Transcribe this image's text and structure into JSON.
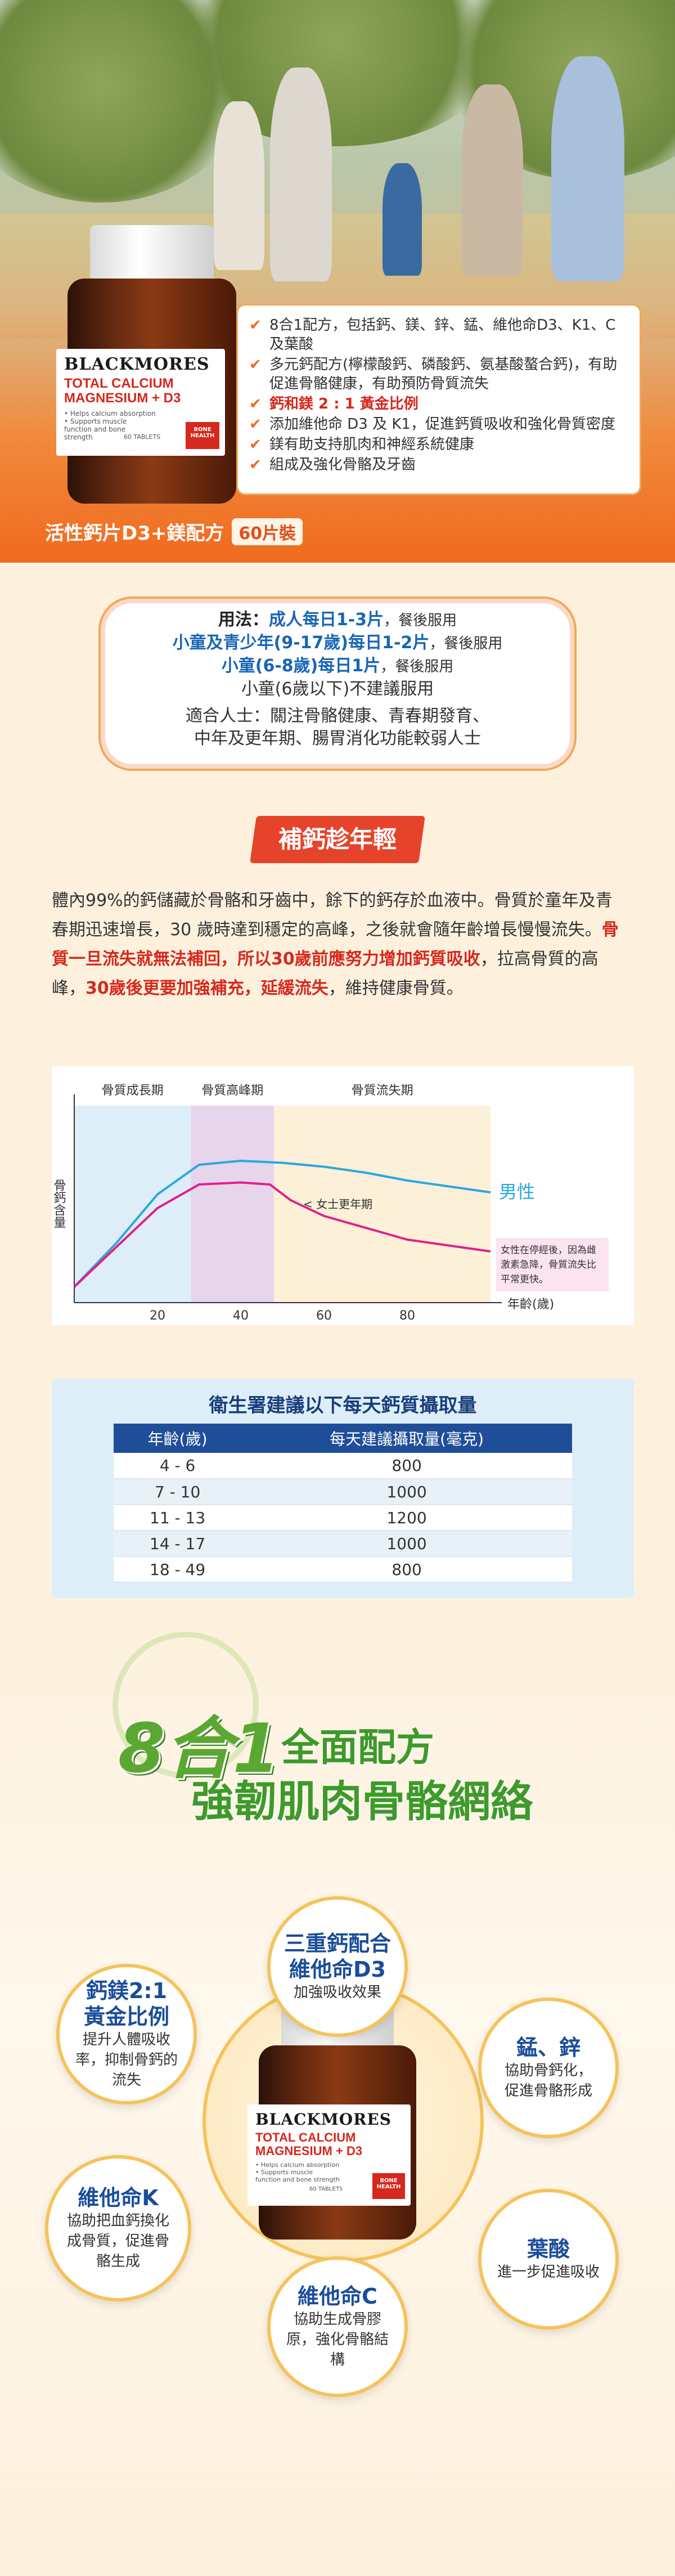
{
  "hero": {
    "brand": "BLACKMORES",
    "product_line1": "TOTAL CALCIUM",
    "product_line2": "MAGNESIUM + D3",
    "label_bullet1": "• Helps calcium absorption",
    "label_bullet2": "• Supports muscle function and bone strength",
    "label_tablets": "60 TABLETS",
    "label_badge": "BONE HEALTH",
    "bullets": [
      "8合1配方，包括鈣、鎂、鋅、錳、維他命D3、K1、C及葉酸",
      "多元鈣配方(檸檬酸鈣、磷酸鈣、氨基酸螯合鈣)，有助促進骨骼健康，有助預防骨質流失",
      "鈣和鎂 2 : 1 黃金比例",
      "添加維他命 D3 及 K1，促進鈣質吸收和強化骨質密度",
      "鎂有助支持肌肉和神經系統健康",
      "組成及強化骨骼及牙齒"
    ],
    "product_name": "活性鈣片D3+鎂配方",
    "pack_size": "60片裝"
  },
  "usage": {
    "line1_label": "用法：",
    "line1_value": "成人每日1-3片",
    "line1_suffix": "，餐後服用",
    "line2_value": "小童及青少年(9-17歲)每日1-2片",
    "line2_suffix": "，餐後服用",
    "line3_value": "小童(6-8歲)每日1片",
    "line3_suffix": "，餐後服用",
    "line4": "小童(6歲以下)不建議服用",
    "line5": "適合人士：關注骨骼健康、青春期發育、",
    "line6": "中年及更年期、腸胃消化功能較弱人士"
  },
  "section": {
    "title": "補鈣趁年輕",
    "para_a": "體內99%的鈣儲藏於骨骼和牙齒中，餘下的鈣存於血液中。骨質於童年及青春期迅速增長，30 歲時達到穩定的高峰，之後就會隨年齡增長慢慢流失。",
    "para_b": "骨質一旦流失就無法補回，所以30歲前應努力增加鈣質吸收",
    "para_c": "，拉高骨質的高峰，",
    "para_d": "30歲後更要加強補充，延緩流失",
    "para_e": "，維持健康骨質。"
  },
  "chart_data": {
    "type": "line",
    "phases": [
      "骨質成長期",
      "骨質高峰期",
      "骨質流失期"
    ],
    "ylabel": "骨鈣含量",
    "xlabel": "年齡(歲)",
    "x_ticks": [
      20,
      40,
      60,
      80
    ],
    "annotation_menopause": "< 女士更年期",
    "female_note": "女性在停經後，因為雌激素急降，骨質流失比平常更快。",
    "series": [
      {
        "name": "男性",
        "color": "#2aa8e0",
        "x": [
          0,
          10,
          20,
          30,
          40,
          50,
          60,
          70,
          80,
          100
        ],
        "y": [
          8,
          30,
          55,
          70,
          72,
          71,
          69,
          66,
          62,
          56
        ]
      },
      {
        "name": "女性",
        "color": "#e0208a",
        "x": [
          0,
          10,
          20,
          30,
          40,
          47,
          52,
          60,
          70,
          80,
          100
        ],
        "y": [
          8,
          28,
          48,
          60,
          61,
          60,
          52,
          44,
          38,
          32,
          26
        ]
      }
    ]
  },
  "table": {
    "title": "衛生署建議以下每天鈣質攝取量",
    "headers": [
      "年齡(歲)",
      "每天建議攝取量(毫克)"
    ],
    "rows": [
      [
        "4 - 6",
        "800"
      ],
      [
        "7 - 10",
        "1000"
      ],
      [
        "11 - 13",
        "1200"
      ],
      [
        "14 - 17",
        "1000"
      ],
      [
        "18 - 49",
        "800"
      ]
    ]
  },
  "formula": {
    "big_number": "8合1",
    "title1": "全面配方",
    "title2": "強韌肌肉骨骼網絡",
    "b1_h": "三重鈣配合維他命D3",
    "b1_d": "加強吸收效果",
    "b2_h": "鈣鎂2:1黃金比例",
    "b2_d": "提升人體吸收率，抑制骨鈣的流失",
    "b3_h": "錳、鋅",
    "b3_d": "協助骨鈣化，促進骨骼形成",
    "b4_h": "維他命K",
    "b4_d": "協助把血鈣換化成骨質，促進骨骼生成",
    "b5_h": "葉酸",
    "b5_d": "進一步促進吸收",
    "b6_h": "維他命C",
    "b6_d": "協助生成骨膠原，強化骨骼結構"
  }
}
